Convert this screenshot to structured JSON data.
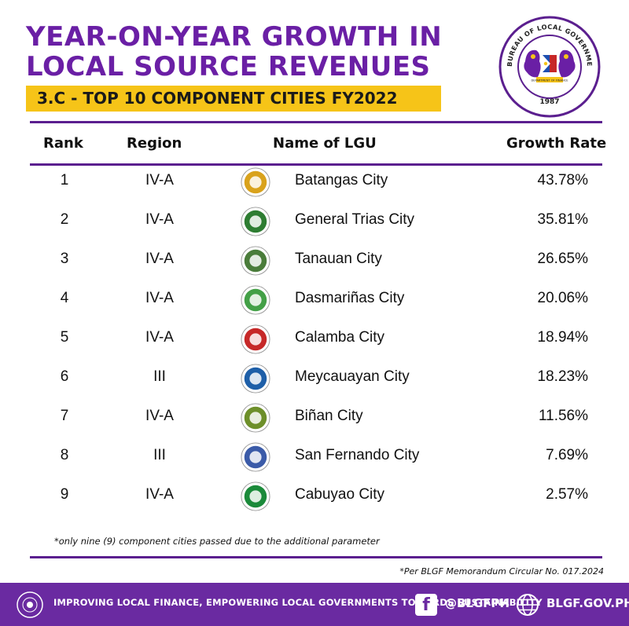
{
  "header": {
    "title_line1": "YEAR-ON-YEAR GROWTH IN",
    "title_line2": "LOCAL SOURCE REVENUES",
    "subtitle": "3.C - TOP 10 COMPONENT CITIES FY2022"
  },
  "seal": {
    "ring_text": "BUREAU OF LOCAL GOVERNMENT FINANCE",
    "year": "1987",
    "inner_text": "DEPARTMENT OF FINANCE"
  },
  "table": {
    "columns": [
      "Rank",
      "Region",
      "Name of LGU",
      "Growth Rate"
    ],
    "rows": [
      {
        "rank": "1",
        "region": "IV-A",
        "name": "Batangas City",
        "rate": "43.78%",
        "logo_color": "#d9a21c"
      },
      {
        "rank": "2",
        "region": "IV-A",
        "name": "General Trias City",
        "rate": "35.81%",
        "logo_color": "#2e7d32"
      },
      {
        "rank": "3",
        "region": "IV-A",
        "name": "Tanauan City",
        "rate": "26.65%",
        "logo_color": "#4a7c3a"
      },
      {
        "rank": "4",
        "region": "IV-A",
        "name": "Dasmariñas City",
        "rate": "20.06%",
        "logo_color": "#43a047"
      },
      {
        "rank": "5",
        "region": "IV-A",
        "name": "Calamba City",
        "rate": "18.94%",
        "logo_color": "#c62828"
      },
      {
        "rank": "6",
        "region": "III",
        "name": "Meycauayan City",
        "rate": "18.23%",
        "logo_color": "#1e5fa8"
      },
      {
        "rank": "7",
        "region": "IV-A",
        "name": "Biñan City",
        "rate": "11.56%",
        "logo_color": "#6d8f2a"
      },
      {
        "rank": "8",
        "region": "III",
        "name": "San Fernando City",
        "rate": "7.69%",
        "logo_color": "#3b5ba8"
      },
      {
        "rank": "9",
        "region": "IV-A",
        "name": "Cabuyao City",
        "rate": "2.57%",
        "logo_color": "#1b8a3a"
      }
    ]
  },
  "notes": {
    "footnote": "*only nine (9) component cities passed due to the additional parameter",
    "memo": "*Per BLGF Memorandum Circular No. 017.2024"
  },
  "footer": {
    "tagline": "IMPROVING LOCAL FINANCE, EMPOWERING LOCAL GOVERNMENTS TOWARDS SUSTAINABILITY",
    "social_handle": "@BLGFPH",
    "website": "BLGF.GOV.PH"
  },
  "colors": {
    "brand_purple": "#6a1fa5",
    "accent_yellow": "#f6c418",
    "footer_purple": "#6a2aa1"
  }
}
